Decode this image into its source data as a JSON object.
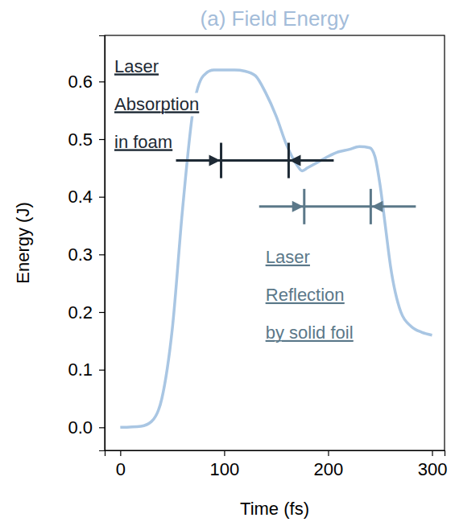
{
  "chart_data": {
    "type": "line",
    "title": "(a) Field Energy",
    "x_label": "Time (fs)",
    "y_label": "Energy (J)",
    "x": [
      0,
      20,
      30,
      40,
      50,
      60,
      70,
      80,
      90,
      100,
      110,
      120,
      130,
      140,
      150,
      160,
      170,
      175,
      180,
      190,
      200,
      210,
      220,
      230,
      240,
      245,
      250,
      255,
      260,
      270,
      280,
      290,
      300
    ],
    "series": [
      {
        "color": "#a9c6e3",
        "values": [
          0.0,
          0.002,
          0.01,
          0.05,
          0.17,
          0.38,
          0.55,
          0.61,
          0.62,
          0.62,
          0.62,
          0.618,
          0.61,
          0.58,
          0.54,
          0.49,
          0.455,
          0.445,
          0.45,
          0.46,
          0.47,
          0.478,
          0.482,
          0.487,
          0.485,
          0.47,
          0.42,
          0.35,
          0.28,
          0.2,
          0.175,
          0.165,
          0.16
        ]
      }
    ],
    "xlim": [
      -15,
      312
    ],
    "ylim": [
      -0.04,
      0.68
    ],
    "xticks": [
      0,
      100,
      200,
      300
    ],
    "yticks": [
      {
        "value": 0,
        "label": "0.0"
      },
      0.1,
      0.2,
      0.3,
      0.4,
      0.5,
      0.6
    ],
    "grid": false,
    "annotations": [
      {
        "text": [
          "Laser",
          "Absorption",
          "in foam"
        ],
        "range": [
          97,
          162
        ],
        "y": 0.463
      },
      {
        "text": [
          "Laser",
          "Reflection",
          "by solid foil"
        ],
        "range": [
          177,
          241
        ],
        "y": 0.383
      }
    ]
  }
}
